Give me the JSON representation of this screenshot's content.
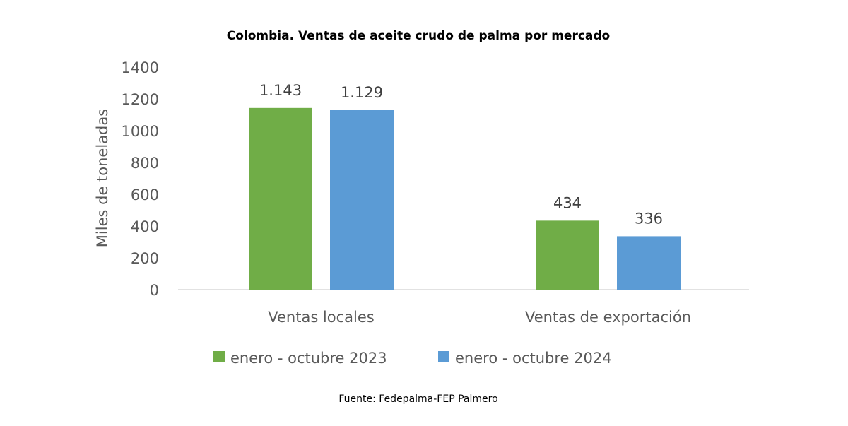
{
  "chart_data": {
    "type": "bar",
    "title": "Colombia. Ventas de aceite crudo de palma por mercado",
    "xlabel": "",
    "ylabel": "Miles de toneladas",
    "ylim": [
      0,
      1400
    ],
    "yticks": [
      0,
      200,
      400,
      600,
      800,
      1000,
      1200,
      1400
    ],
    "categories": [
      "Ventas locales",
      "Ventas de exportación"
    ],
    "series": [
      {
        "name": "enero - octubre 2023",
        "color": "#70AD47",
        "values": [
          1143,
          434
        ],
        "labels": [
          "1.143",
          "434"
        ]
      },
      {
        "name": "enero - octubre 2024",
        "color": "#5B9BD5",
        "values": [
          1129,
          336
        ],
        "labels": [
          "1.129",
          "336"
        ]
      }
    ],
    "grid": false,
    "legend": "bottom",
    "source": "Fuente: Fedepalma-FEP Palmero"
  }
}
